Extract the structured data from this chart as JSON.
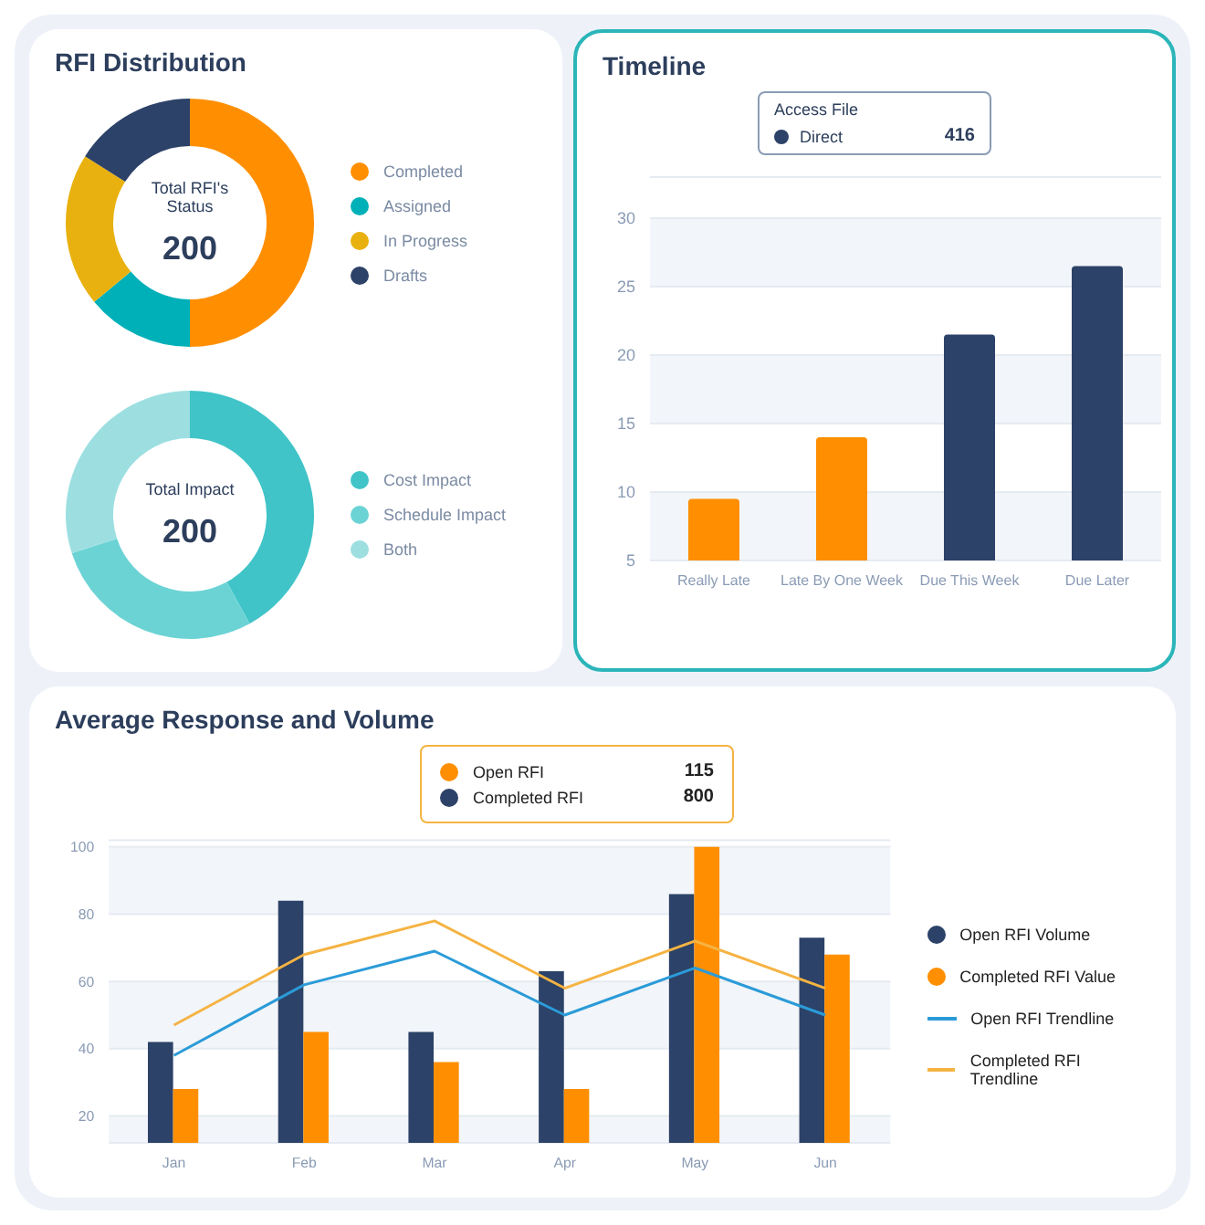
{
  "chart_data": [
    {
      "type": "donut",
      "title": "RFI Distribution",
      "categories": [
        "Completed",
        "Assigned",
        "In Progress",
        "Drafts"
      ],
      "values": [
        50,
        14,
        20,
        16
      ],
      "colors": [
        "#ff8f00",
        "#00b0b9",
        "#e9b10f",
        "#2c4268"
      ],
      "legend": "right",
      "annotations": [
        "Total RFI's Status",
        "200"
      ]
    },
    {
      "type": "donut",
      "categories": [
        "Cost Impact",
        "Schedule Impact",
        "Both"
      ],
      "values": [
        42,
        28,
        30
      ],
      "colors": [
        "#40c4c8",
        "#6cd3d5",
        "#9ddfe1"
      ],
      "legend": "right",
      "annotations": [
        "Total Impact",
        "200"
      ]
    },
    {
      "type": "bar",
      "title": "Timeline",
      "categories": [
        "Really Late",
        "Late By One Week",
        "Due This Week",
        "Due Later"
      ],
      "values": [
        9.5,
        14,
        21.5,
        26.5
      ],
      "colors": [
        "#ff8f00",
        "#ff8f00",
        "#2c4268",
        "#2c4268"
      ],
      "ylim": [
        5,
        33
      ],
      "yticks": [
        5,
        10,
        15,
        20,
        25,
        30
      ],
      "grid": "y",
      "annotations": [
        "Access File",
        "Direct",
        "416"
      ]
    },
    {
      "type": "bar",
      "title": "Average Response and Volume",
      "categories": [
        "Jan",
        "Feb",
        "Mar",
        "Apr",
        "May",
        "Jun"
      ],
      "ylim": [
        12,
        102
      ],
      "yticks": [
        20,
        40,
        60,
        80,
        100
      ],
      "grid": "y",
      "legend": "right",
      "series": [
        {
          "name": "Open RFI Volume",
          "color": "#2c4268",
          "values": [
            42,
            84,
            45,
            63,
            86,
            73
          ]
        },
        {
          "name": "Completed RFI Value",
          "color": "#ff8f00",
          "values": [
            28,
            45,
            36,
            28,
            100,
            68
          ]
        },
        {
          "name": "Open RFI Trendline",
          "type": "line",
          "color": "#2b9bd8",
          "values": [
            38,
            59,
            69,
            50,
            64,
            50
          ]
        },
        {
          "name": "Completed RFI Trendline",
          "type": "line",
          "color": "#f5b342",
          "values": [
            47,
            68,
            78,
            58,
            72,
            58
          ]
        }
      ],
      "annotations": [
        "Open RFI",
        "115",
        "Completed RFI",
        "800"
      ]
    }
  ]
}
